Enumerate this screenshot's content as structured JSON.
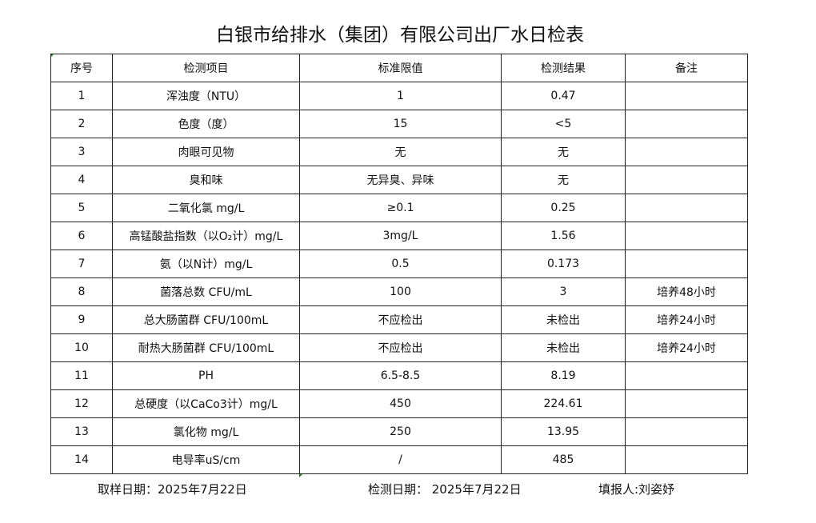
{
  "title": "白银市给排水（集团）有限公司出厂水日检表",
  "columns": [
    "序号",
    "检测项目",
    "标准限值",
    "检测结果",
    "备注"
  ],
  "rows": [
    [
      "1",
      "浑浊度（NTU）",
      "1",
      "0.47",
      ""
    ],
    [
      "2",
      "色度（度）",
      "15",
      "<5",
      ""
    ],
    [
      "3",
      "肉眼可见物",
      "无",
      "无",
      ""
    ],
    [
      "4",
      "臭和味",
      "无异臭、异味",
      "无",
      ""
    ],
    [
      "5",
      "二氧化氯 mg/L",
      "≥0.1",
      "0.25",
      ""
    ],
    [
      "6",
      "高锰酸盐指数（以O₂计）mg/L",
      "3mg/L",
      "1.56",
      ""
    ],
    [
      "7",
      "氨（以N计）mg/L",
      "0.5",
      "0.173",
      ""
    ],
    [
      "8",
      "菌落总数 CFU/mL",
      "100",
      "3",
      "培养48小时"
    ],
    [
      "9",
      "总大肠菌群 CFU/100mL",
      "不应检出",
      "未检出",
      "培养24小时"
    ],
    [
      "10",
      "耐热大肠菌群 CFU/100mL",
      "不应检出",
      "未检出",
      "培养24小时"
    ],
    [
      "11",
      "PH",
      "6.5-8.5",
      "8.19",
      ""
    ],
    [
      "12",
      "总硬度（以CaCo3计）mg/L",
      "450",
      "224.61",
      ""
    ],
    [
      "13",
      "氯化物 mg/L",
      "250",
      "13.95",
      ""
    ],
    [
      "14",
      "电导率uS/cm",
      "/",
      "485",
      ""
    ]
  ],
  "footer": {
    "sampling_date": "取样日期：2025年7月22日",
    "test_date": "检测日期：  2025年7月22日",
    "reporter": "填报人:刘姿妤"
  }
}
